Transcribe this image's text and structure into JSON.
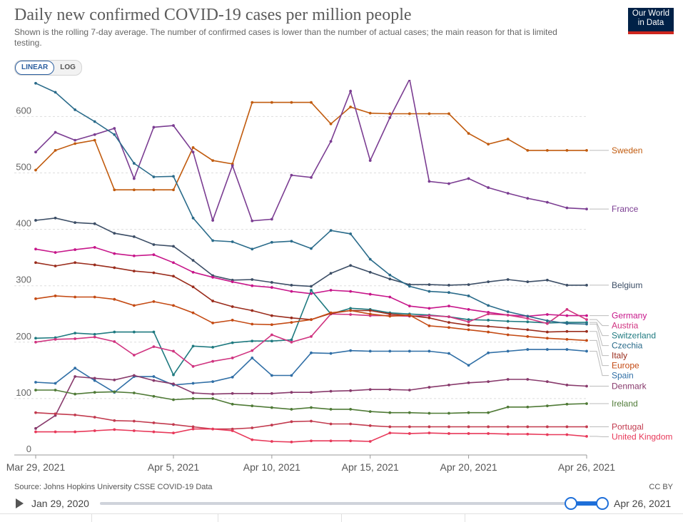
{
  "header": {
    "title": "Daily new confirmed COVID-19 cases per million people",
    "subtitle": "Shown is the rolling 7-day average. The number of confirmed cases is lower than the number of actual cases; the main reason for that is limited testing.",
    "logo_line1": "Our World",
    "logo_line2": "in Data"
  },
  "controls": {
    "linear_label": "LINEAR",
    "log_label": "LOG",
    "active": "linear"
  },
  "footer": {
    "source": "Source: Johns Hopkins University CSSE COVID-19 Data",
    "license": "CC BY"
  },
  "timeline": {
    "start_label": "Jan 29, 2020",
    "end_label": "Apr 26, 2021"
  },
  "chart_data": {
    "type": "line",
    "x": [
      "2021-03-29",
      "2021-03-30",
      "2021-03-31",
      "2021-04-01",
      "2021-04-02",
      "2021-04-03",
      "2021-04-04",
      "2021-04-05",
      "2021-04-06",
      "2021-04-07",
      "2021-04-08",
      "2021-04-09",
      "2021-04-10",
      "2021-04-11",
      "2021-04-12",
      "2021-04-13",
      "2021-04-14",
      "2021-04-15",
      "2021-04-16",
      "2021-04-17",
      "2021-04-18",
      "2021-04-19",
      "2021-04-20",
      "2021-04-21",
      "2021-04-22",
      "2021-04-23",
      "2021-04-24",
      "2021-04-25",
      "2021-04-26"
    ],
    "x_ticks": [
      "Mar 29, 2021",
      "Apr 5, 2021",
      "Apr 10, 2021",
      "Apr 15, 2021",
      "Apr 20, 2021",
      "Apr 26, 2021"
    ],
    "y_ticks": [
      0,
      100,
      200,
      300,
      400,
      500,
      600
    ],
    "ylim": [
      0,
      665
    ],
    "grid": true,
    "legend": "right",
    "series": [
      {
        "name": "Sweden",
        "color": "#c15b0e",
        "values": [
          505,
          540,
          552,
          558,
          470,
          470,
          470,
          470,
          545,
          522,
          516,
          625,
          625,
          625,
          625,
          587,
          617,
          606,
          605,
          605,
          605,
          605,
          570,
          551,
          560,
          540,
          540,
          540,
          540
        ]
      },
      {
        "name": "France",
        "color": "#7b3d92",
        "values": [
          537,
          572,
          558,
          568,
          579,
          490,
          581,
          584,
          537,
          416,
          513,
          415,
          418,
          496,
          492,
          556,
          645,
          522,
          598,
          666,
          485,
          481,
          490,
          474,
          464,
          455,
          448,
          438,
          436
        ]
      },
      {
        "name": "Belgium",
        "color": "#3c4e66",
        "values": [
          416,
          420,
          412,
          410,
          393,
          387,
          373,
          370,
          345,
          318,
          310,
          311,
          306,
          301,
          299,
          322,
          336,
          324,
          312,
          302,
          302,
          301,
          302,
          307,
          311,
          307,
          310,
          301,
          301
        ]
      },
      {
        "name": "Germany",
        "color": "#c7168a",
        "values": [
          365,
          359,
          364,
          368,
          357,
          353,
          355,
          341,
          324,
          315,
          307,
          300,
          297,
          290,
          286,
          292,
          290,
          285,
          280,
          264,
          260,
          264,
          258,
          253,
          248,
          246,
          249,
          247,
          247
        ]
      },
      {
        "name": "Switzerland",
        "color": "#1f7a80",
        "values": [
          207,
          208,
          216,
          214,
          218,
          218,
          218,
          142,
          193,
          191,
          199,
          202,
          202,
          204,
          292,
          250,
          260,
          258,
          252,
          250,
          248,
          245,
          240,
          239,
          237,
          236,
          234,
          235,
          235
        ]
      },
      {
        "name": "Austria",
        "color": "#d03480",
        "values": [
          200,
          205,
          206,
          209,
          201,
          177,
          192,
          184,
          157,
          166,
          172,
          185,
          213,
          200,
          210,
          250,
          249,
          247,
          247,
          246,
          247,
          245,
          236,
          250,
          248,
          242,
          233,
          258,
          240
        ]
      },
      {
        "name": "Czechia",
        "color": "#2a6b8a",
        "values": [
          659,
          643,
          612,
          591,
          568,
          517,
          493,
          494,
          420,
          380,
          378,
          365,
          377,
          379,
          366,
          398,
          392,
          347,
          319,
          299,
          290,
          288,
          282,
          265,
          254,
          246,
          238,
          233,
          232
        ]
      },
      {
        "name": "Italy",
        "color": "#9a2c1c",
        "values": [
          341,
          335,
          341,
          337,
          332,
          326,
          323,
          317,
          298,
          273,
          263,
          256,
          247,
          243,
          240,
          251,
          256,
          256,
          250,
          247,
          243,
          235,
          230,
          228,
          225,
          222,
          218,
          219,
          219
        ]
      },
      {
        "name": "Europe",
        "color": "#c44a13",
        "values": [
          277,
          282,
          280,
          280,
          276,
          265,
          272,
          265,
          252,
          234,
          239,
          232,
          231,
          235,
          240,
          252,
          256,
          250,
          246,
          248,
          229,
          226,
          222,
          218,
          213,
          210,
          207,
          205,
          203
        ]
      },
      {
        "name": "Spain",
        "color": "#306fa6",
        "values": [
          129,
          127,
          154,
          132,
          111,
          139,
          139,
          124,
          127,
          130,
          138,
          172,
          141,
          141,
          181,
          180,
          185,
          184,
          184,
          184,
          184,
          180,
          159,
          181,
          184,
          187,
          187,
          187,
          184
        ]
      },
      {
        "name": "Denmark",
        "color": "#883a6c",
        "values": [
          47,
          70,
          139,
          136,
          133,
          141,
          132,
          126,
          110,
          108,
          109,
          109,
          109,
          111,
          111,
          113,
          114,
          116,
          116,
          115,
          120,
          124,
          128,
          130,
          134,
          134,
          130,
          124,
          122
        ]
      },
      {
        "name": "Ireland",
        "color": "#4f7a36",
        "values": [
          115,
          115,
          108,
          111,
          112,
          110,
          104,
          98,
          100,
          100,
          90,
          87,
          84,
          81,
          84,
          81,
          81,
          77,
          75,
          75,
          74,
          74,
          75,
          75,
          85,
          85,
          87,
          90,
          91
        ]
      },
      {
        "name": "Portugal",
        "color": "#c23a4e",
        "values": [
          75,
          73,
          71,
          67,
          61,
          60,
          57,
          54,
          50,
          46,
          46,
          48,
          53,
          59,
          60,
          55,
          55,
          52,
          50,
          50,
          50,
          50,
          50,
          50,
          50,
          50,
          50,
          50,
          50
        ]
      },
      {
        "name": "United Kingdom",
        "color": "#e8395a",
        "values": [
          41,
          41,
          41,
          43,
          45,
          43,
          41,
          39,
          46,
          46,
          43,
          27,
          24,
          23,
          25,
          25,
          25,
          24,
          39,
          38,
          39,
          38,
          38,
          38,
          37,
          37,
          36,
          36,
          33
        ]
      }
    ]
  }
}
